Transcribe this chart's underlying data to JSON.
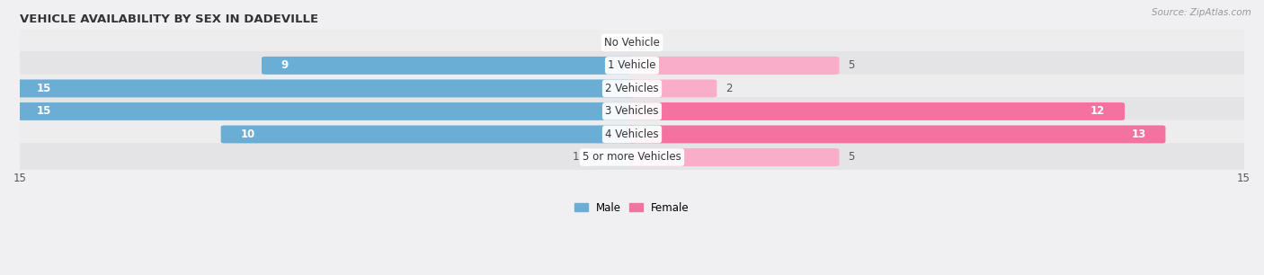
{
  "title": "VEHICLE AVAILABILITY BY SEX IN DADEVILLE",
  "source": "Source: ZipAtlas.com",
  "categories": [
    "No Vehicle",
    "1 Vehicle",
    "2 Vehicles",
    "3 Vehicles",
    "4 Vehicles",
    "5 or more Vehicles"
  ],
  "male_values": [
    0,
    9,
    15,
    15,
    10,
    1
  ],
  "female_values": [
    0,
    5,
    2,
    12,
    13,
    5
  ],
  "male_color_dark": "#6aaed6",
  "male_color_light": "#aecde8",
  "female_color_dark": "#f472a0",
  "female_color_light": "#f9adc8",
  "row_bg_colors": [
    "#ededee",
    "#e4e4e6",
    "#ededee",
    "#e4e4e6",
    "#ededee",
    "#e4e4e6"
  ],
  "xlim": 15,
  "bar_height": 0.62,
  "figsize": [
    14.06,
    3.06
  ],
  "dpi": 100,
  "title_fontsize": 9.5,
  "label_fontsize": 8.5,
  "value_fontsize": 8.5,
  "tick_fontsize": 8.5,
  "source_fontsize": 7.5,
  "dark_threshold": 8
}
